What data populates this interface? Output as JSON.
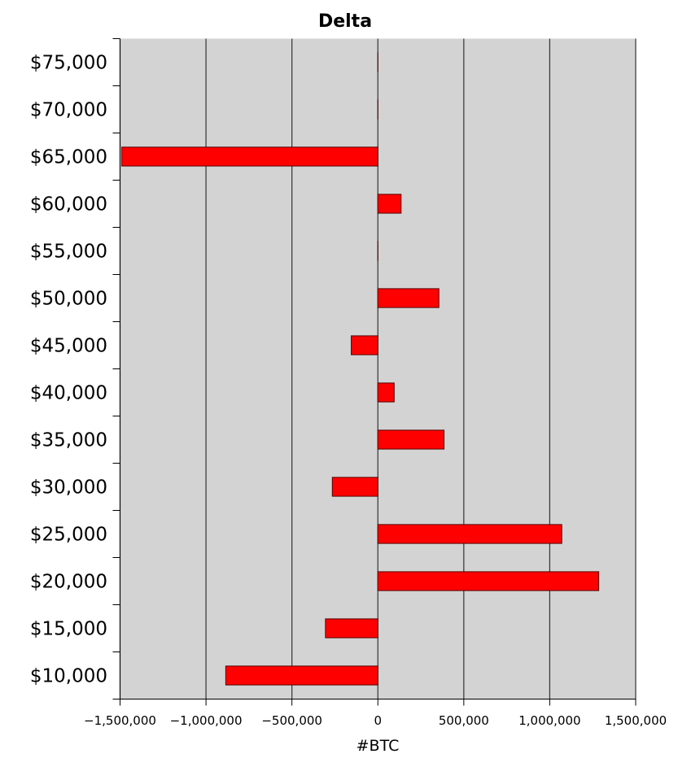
{
  "chart_data": {
    "type": "bar",
    "orientation": "horizontal",
    "title": "Delta",
    "xlabel": "#BTC",
    "ylabel": "",
    "xlim": [
      -1500000,
      1500000
    ],
    "x_ticks": [
      -1500000,
      -1000000,
      -500000,
      0,
      500000,
      1000000,
      1500000
    ],
    "x_tick_labels": [
      "−1,500,000",
      "−1,000,000",
      "−500,000",
      "0",
      "500,000",
      "1,000,000",
      "1,500,000"
    ],
    "grid": "vertical",
    "legend": "none",
    "categories": [
      "$10,000",
      "$15,000",
      "$20,000",
      "$25,000",
      "$30,000",
      "$35,000",
      "$40,000",
      "$45,000",
      "$50,000",
      "$55,000",
      "$60,000",
      "$65,000",
      "$70,000",
      "$75,000"
    ],
    "values": [
      -885000,
      -305000,
      1285000,
      1070000,
      -265000,
      385000,
      95000,
      -155000,
      355000,
      0,
      135000,
      -1490000,
      0,
      0
    ],
    "colors": {
      "bar_fill": "#ff0000",
      "bar_stroke": "#550000",
      "plot_background": "#d3d3d3",
      "grid": "#333333",
      "axis": "#000000"
    }
  }
}
